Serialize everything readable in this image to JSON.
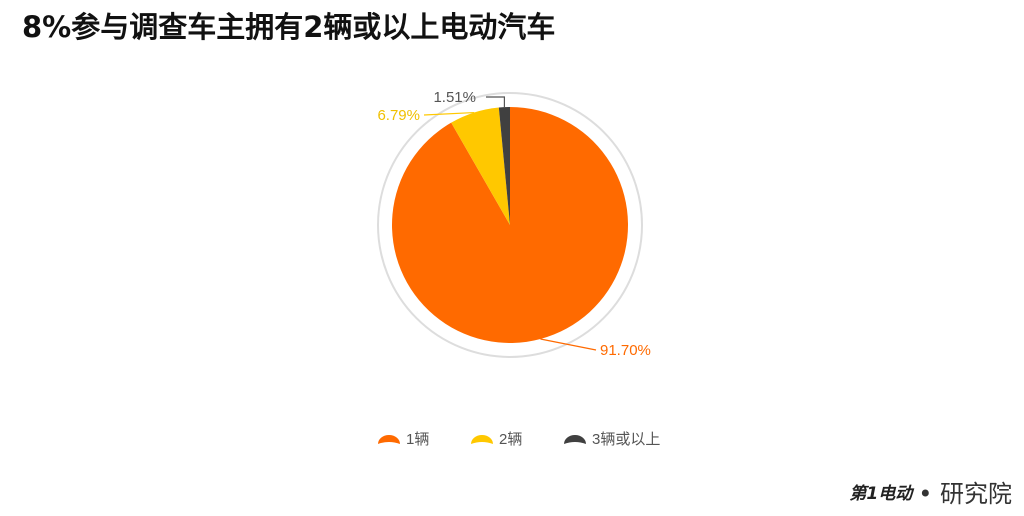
{
  "chart_data": {
    "type": "pie",
    "title": "8%参与调查车主拥有2辆或以上电动汽车",
    "slices": [
      {
        "name": "1辆",
        "value": 91.7,
        "label": "91.70%",
        "color": "#FF6A00"
      },
      {
        "name": "2辆",
        "value": 6.79,
        "label": "6.79%",
        "color": "#FFC800"
      },
      {
        "name": "3辆或以上",
        "value": 1.51,
        "label": "1.51%",
        "color": "#404040"
      }
    ],
    "start_angle": "12 o'clock, clockwise",
    "legend_placement": "bottom"
  },
  "logo": {
    "brand": "第1电动",
    "suffix": "• 研究院"
  }
}
